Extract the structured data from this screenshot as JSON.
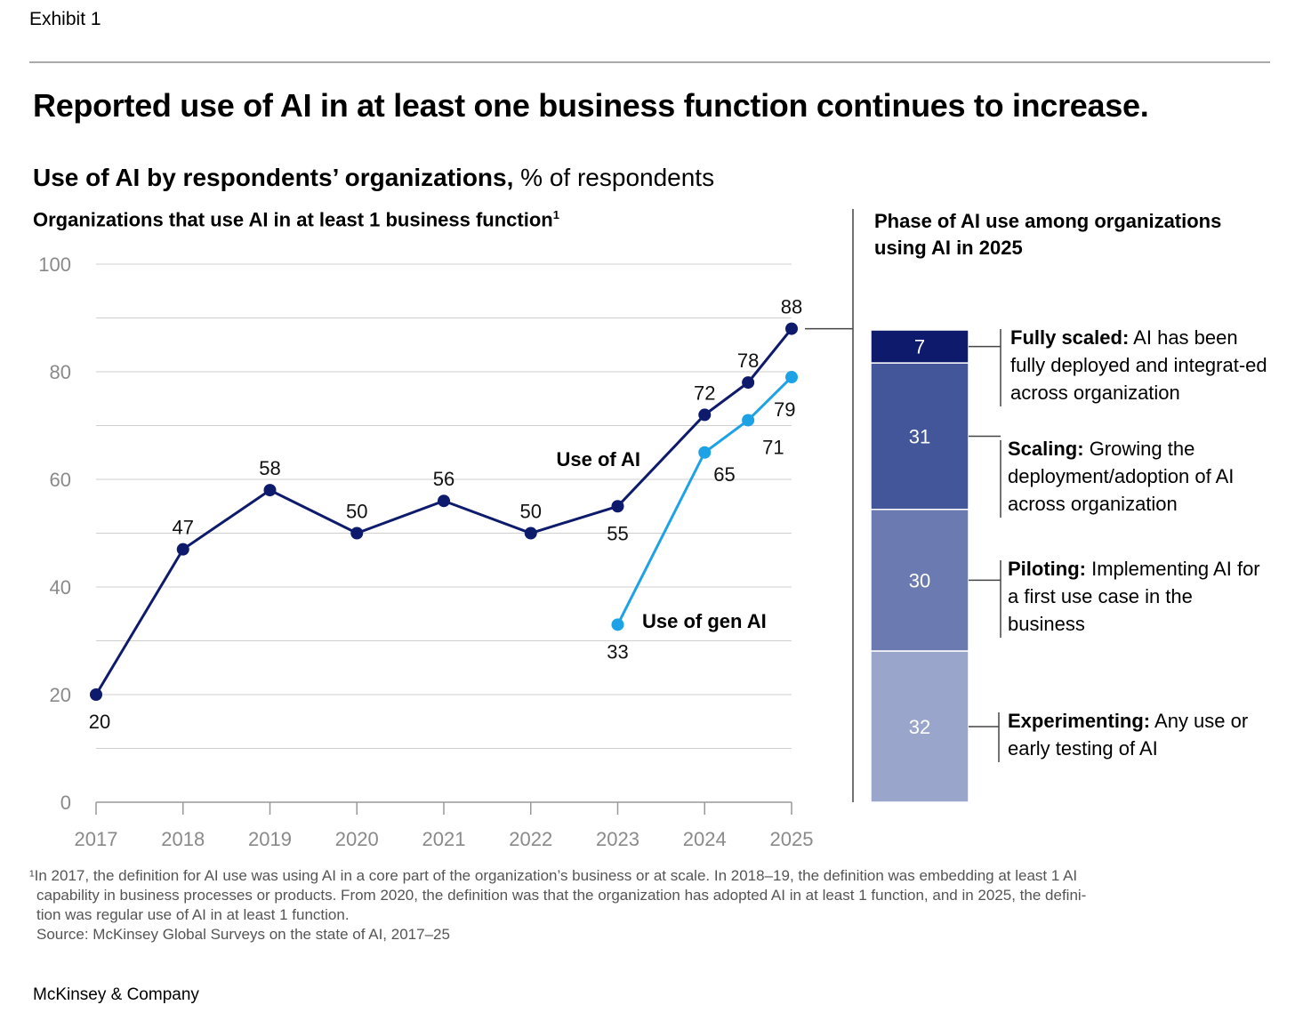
{
  "header": {
    "exhibit": "Exhibit 1",
    "title": "Reported use of AI in at least one business function continues to increase.",
    "subtitle_bold": "Use of AI by respondents’ organizations,",
    "subtitle_rest": " % of respondents"
  },
  "chart_data": [
    {
      "type": "line",
      "title": "Organizations that use AI in at least 1 business function",
      "title_sup": "1",
      "xlabel": "",
      "ylabel": "% of respondents",
      "ylim": [
        0,
        100
      ],
      "yticks": [
        "0",
        "20",
        "40",
        "60",
        "80",
        "100"
      ],
      "xticks": [
        "2017",
        "2018",
        "2019",
        "2020",
        "2021",
        "2022",
        "2023",
        "2024",
        "2025"
      ],
      "grid": true,
      "series": [
        {
          "name": "Use of AI",
          "color": "#0e1a6b",
          "x": [
            2017,
            2018,
            2019,
            2020,
            2021,
            2022,
            2023,
            2024,
            2024.5,
            2025
          ],
          "values": [
            20,
            47,
            58,
            50,
            56,
            50,
            55,
            72,
            78,
            88
          ],
          "label_pos": [
            "below",
            "above",
            "above",
            "above",
            "above",
            "above",
            "below",
            "above",
            "above",
            "above"
          ]
        },
        {
          "name": "Use of gen AI",
          "color": "#1ea2e6",
          "x": [
            2023,
            2024,
            2024.5,
            2025
          ],
          "values": [
            33,
            65,
            71,
            79
          ],
          "label_pos": [
            "below",
            "below-right",
            "below-right",
            "below-right"
          ]
        }
      ]
    },
    {
      "type": "bar",
      "stacked": true,
      "title": "Phase of AI use among organizations using AI in 2025",
      "categories": [
        "Fully scaled",
        "Scaling",
        "Piloting",
        "Experimenting"
      ],
      "values": [
        7,
        31,
        30,
        32
      ],
      "colors": [
        "#0e1a6b",
        "#43569a",
        "#6b7bb1",
        "#9aa5cb"
      ],
      "descriptions": [
        {
          "bold": "Fully scaled:",
          "text": " AI has been fully deployed and integrat-ed across organization"
        },
        {
          "bold": "Scaling:",
          "text": " Growing the deployment/adoption of AI across organization"
        },
        {
          "bold": "Piloting:",
          "text": " Implementing AI for a first use case in the business"
        },
        {
          "bold": "Experimenting:",
          "text": " Any use or early testing of AI"
        }
      ]
    }
  ],
  "footnote": {
    "lines": [
      "¹In 2017, the definition for AI use was using AI in a core part of the organization’s business or at scale. In 2018–19, the definition was embedding at least 1 AI",
      "capability in business processes or products. From 2020, the definition was that the organization has adopted AI in at least 1 function, and in 2025, the defini-",
      "tion was regular use of AI in at least 1 function.",
      "Source: McKinsey Global Surveys on the state of AI, 2017–25"
    ]
  },
  "brand": "McKinsey & Company"
}
